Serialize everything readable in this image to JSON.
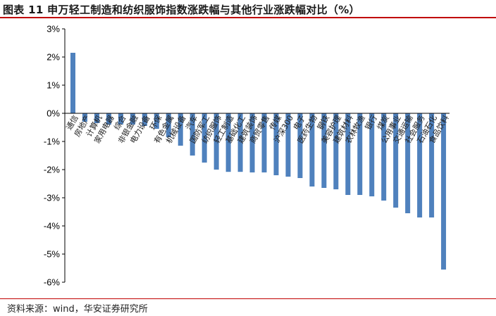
{
  "header": {
    "title": "图表 11 申万轻工制造和纺织服饰指数涨跌幅与其他行业涨跌幅对比（%）"
  },
  "footer": {
    "source": "资料来源：wind，华安证券研究所"
  },
  "colors": {
    "bar": "#4f81bd",
    "rule": "#c00000"
  },
  "chart_data": {
    "type": "bar",
    "categories": [
      "通信",
      "房地产",
      "计算机",
      "家用电器",
      "综合",
      "非银金融",
      "电力设备",
      "环保",
      "有色金属",
      "机械设备",
      "汽车",
      "国防军工",
      "纺织服饰",
      "轻工制造",
      "基础化工",
      "建筑装饰",
      "商贸零售",
      "传媒",
      "沪深300",
      "电子",
      "医药生物",
      "钢铁",
      "美容护理",
      "建筑材料",
      "农林牧渔",
      "银行",
      "煤炭",
      "公用事业",
      "交通运输",
      "社会服务",
      "石油石化",
      "食品饮料"
    ],
    "values": [
      2.15,
      -0.3,
      -0.35,
      -0.4,
      -0.4,
      -0.4,
      -0.45,
      -0.55,
      -0.85,
      -1.15,
      -1.5,
      -1.75,
      -2.0,
      -2.08,
      -2.08,
      -2.1,
      -2.1,
      -2.2,
      -2.25,
      -2.3,
      -2.6,
      -2.65,
      -2.7,
      -2.9,
      -2.9,
      -2.95,
      -3.1,
      -3.35,
      -3.55,
      -3.7,
      -3.7,
      -5.55
    ],
    "ylim": [
      -6,
      3
    ],
    "yticks": [
      "3%",
      "2%",
      "1%",
      "0%",
      "-1%",
      "-2%",
      "-3%",
      "-4%",
      "-5%",
      "-6%"
    ],
    "grid": false,
    "legend": "none"
  }
}
